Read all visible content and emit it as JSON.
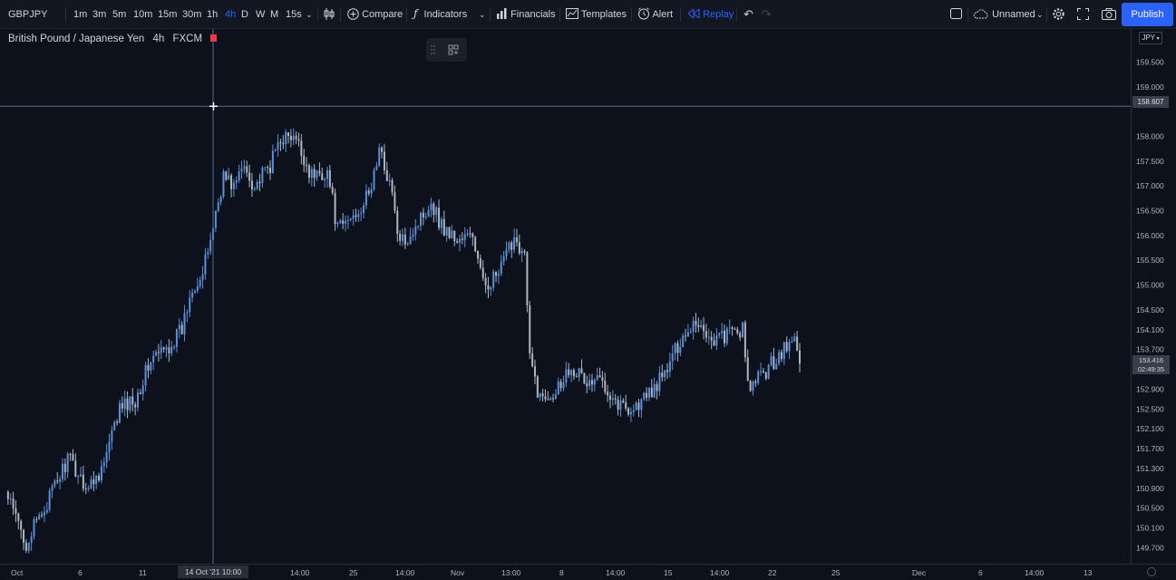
{
  "toolbar": {
    "symbol": "GBPJPY",
    "timeframes": [
      "1m",
      "3m",
      "5m",
      "10m",
      "15m",
      "30m",
      "1h",
      "4h",
      "D",
      "W",
      "M",
      "15s"
    ],
    "active_timeframe": "4h",
    "compare": "Compare",
    "indicators": "Indicators",
    "financials": "Financials",
    "templates": "Templates",
    "alert": "Alert",
    "replay": "Replay",
    "layout_name": "Unnamed",
    "publish": "Publish"
  },
  "legend": {
    "name": "British Pound / Japanese Yen",
    "interval": "4h",
    "exchange": "FXCM"
  },
  "price_scale": {
    "currency": "JPY",
    "crosshair_price": "158.607",
    "last_price": "153.416",
    "countdown": "02:49:35"
  },
  "time_scale": {
    "crosshair_time": "14 Oct '21   10:00"
  },
  "colors": {
    "background": "#0c111b",
    "candle_up": "#5b8fd9",
    "candle_down": "#aeb6c2",
    "accent": "#2962ff",
    "crosshair": "#4f6d9a"
  },
  "icons": [
    "layout-grid-icon",
    "candles-icon",
    "compare-plus-icon",
    "indicators-icon",
    "financials-icon",
    "templates-icon",
    "alert-icon",
    "replay-icon",
    "undo-icon",
    "redo-icon",
    "square-icon",
    "cloud-icon",
    "gear-icon",
    "fullscreen-icon",
    "camera-icon",
    "settings-icon"
  ],
  "chart_data": {
    "type": "candlestick",
    "symbol": "British Pound / Japanese Yen",
    "interval": "4h",
    "y_ticks": [
      "159.500",
      "159.000",
      "158.000",
      "157.500",
      "157.000",
      "156.500",
      "156.000",
      "155.500",
      "155.000",
      "154.500",
      "154.100",
      "153.700",
      "152.900",
      "152.500",
      "152.100",
      "151.700",
      "151.300",
      "150.900",
      "150.500",
      "150.100",
      "149.700"
    ],
    "x_ticks": [
      "Oct",
      "6",
      "11",
      "14:00",
      "25",
      "14:00",
      "Nov",
      "13:00",
      "8",
      "14:00",
      "15",
      "14:00",
      "22",
      "25",
      "Dec",
      "6",
      "14:00",
      "13"
    ],
    "ylim": [
      149.45,
      159.9
    ],
    "crosshair_price": 158.607,
    "last_price": 153.416,
    "path": [
      [
        0,
        150.8
      ],
      [
        4,
        149.8
      ],
      [
        8,
        150.6
      ],
      [
        12,
        151.5
      ],
      [
        14,
        151.2
      ],
      [
        16,
        150.9
      ],
      [
        19,
        151.4
      ],
      [
        22,
        152.5
      ],
      [
        25,
        152.7
      ],
      [
        28,
        153.5
      ],
      [
        31,
        153.7
      ],
      [
        34,
        154.1
      ],
      [
        36,
        155.0
      ],
      [
        38,
        155.2
      ],
      [
        40,
        156.2
      ],
      [
        42,
        157.2
      ],
      [
        44,
        157.0
      ],
      [
        46,
        157.4
      ],
      [
        48,
        157.0
      ],
      [
        51,
        157.4
      ],
      [
        53,
        158.0
      ],
      [
        56,
        157.9
      ],
      [
        59,
        157.2
      ],
      [
        62,
        157.3
      ],
      [
        64,
        156.1
      ],
      [
        67,
        156.4
      ],
      [
        70,
        156.8
      ],
      [
        72,
        157.7
      ],
      [
        74,
        157.1
      ],
      [
        76,
        155.8
      ],
      [
        79,
        156.2
      ],
      [
        82,
        156.7
      ],
      [
        84,
        156.2
      ],
      [
        87,
        155.9
      ],
      [
        90,
        156.0
      ],
      [
        92,
        155.0
      ],
      [
        95,
        155.2
      ],
      [
        98,
        156.0
      ],
      [
        100,
        155.6
      ],
      [
        101,
        153.5
      ],
      [
        103,
        152.7
      ],
      [
        106,
        152.9
      ],
      [
        109,
        153.4
      ],
      [
        112,
        153.0
      ],
      [
        115,
        153.1
      ],
      [
        118,
        152.6
      ],
      [
        121,
        152.5
      ],
      [
        124,
        152.8
      ],
      [
        127,
        153.2
      ],
      [
        130,
        153.9
      ],
      [
        133,
        154.3
      ],
      [
        136,
        153.9
      ],
      [
        139,
        154.0
      ],
      [
        142,
        154.1
      ],
      [
        143,
        152.9
      ],
      [
        146,
        153.2
      ],
      [
        149,
        153.6
      ],
      [
        152,
        153.9
      ],
      [
        153,
        153.416
      ]
    ]
  }
}
